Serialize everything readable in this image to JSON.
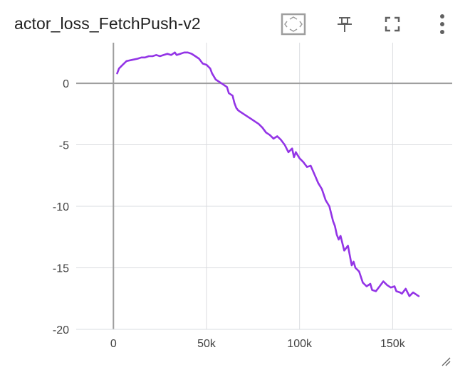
{
  "card": {
    "title": "actor_loss_FetchPush-v2"
  },
  "toolbar": {
    "icons": [
      "fit-domain-icon",
      "pin-icon",
      "fullscreen-icon",
      "more-vert-icon"
    ]
  },
  "colors": {
    "series": "#9334e6",
    "grid": "#dadce0",
    "zero_axis": "#9e9e9e",
    "text": "#424242",
    "icon": "#616161"
  },
  "chart_data": {
    "type": "line",
    "title": "actor_loss_FetchPush-v2",
    "xlabel": "",
    "ylabel": "",
    "xlim": [
      -20000,
      182000
    ],
    "ylim": [
      -20,
      3.3
    ],
    "x_ticks": [
      0,
      50000,
      100000,
      150000
    ],
    "x_tick_labels": [
      "0",
      "50k",
      "100k",
      "150k"
    ],
    "y_ticks": [
      0,
      -5,
      -10,
      -15,
      -20
    ],
    "y_tick_labels": [
      "0",
      "-5",
      "-10",
      "-15",
      "-20"
    ],
    "grid": true,
    "legend": "none",
    "series": [
      {
        "x": [
          2000,
          3000,
          5000,
          7000,
          10000,
          13000,
          15000,
          17000,
          19000,
          21000,
          23000,
          25000,
          27000,
          29000,
          31000,
          33000,
          34000,
          36000,
          38000,
          40000,
          42000,
          44000,
          46000,
          48000,
          50000,
          52000,
          53000,
          55000,
          57000,
          59000,
          61000,
          62000,
          64000,
          65000,
          66000,
          67000,
          68000,
          70000,
          72000,
          74000,
          76000,
          78000,
          80000,
          82000,
          84000,
          86000,
          88000,
          90000,
          92000,
          94000,
          96000,
          97000,
          98000,
          100000,
          102000,
          104000,
          106000,
          108000,
          110000,
          112000,
          114000,
          116000,
          118000,
          119000,
          120000,
          121000,
          122000,
          124000,
          126000,
          128000,
          129000,
          130000,
          132000,
          134000,
          136000,
          138000,
          139000,
          141000,
          143000,
          145000,
          147000,
          149000,
          151000,
          152000,
          154000,
          155000,
          157000,
          159000,
          161000,
          163000,
          164000
        ],
        "y": [
          0.8,
          1.2,
          1.5,
          1.8,
          1.9,
          2.0,
          2.1,
          2.1,
          2.2,
          2.2,
          2.3,
          2.2,
          2.3,
          2.4,
          2.3,
          2.5,
          2.3,
          2.4,
          2.5,
          2.5,
          2.4,
          2.2,
          2.0,
          1.6,
          1.5,
          1.2,
          0.8,
          0.3,
          0.1,
          -0.1,
          -0.3,
          -0.8,
          -1.0,
          -1.6,
          -2.0,
          -2.2,
          -2.3,
          -2.5,
          -2.7,
          -2.9,
          -3.1,
          -3.3,
          -3.6,
          -4.0,
          -4.2,
          -4.5,
          -4.3,
          -4.6,
          -5.0,
          -5.6,
          -5.3,
          -6.0,
          -5.6,
          -6.1,
          -6.4,
          -6.8,
          -6.7,
          -7.4,
          -8.1,
          -8.6,
          -9.5,
          -10.0,
          -11.2,
          -11.6,
          -12.3,
          -12.7,
          -12.4,
          -13.6,
          -13.2,
          -14.8,
          -14.5,
          -15.0,
          -15.3,
          -16.2,
          -16.5,
          -16.3,
          -16.8,
          -16.9,
          -16.5,
          -16.1,
          -16.4,
          -16.6,
          -16.5,
          -16.9,
          -17.0,
          -17.1,
          -16.7,
          -17.3,
          -17.0,
          -17.2,
          -17.3
        ]
      }
    ]
  }
}
